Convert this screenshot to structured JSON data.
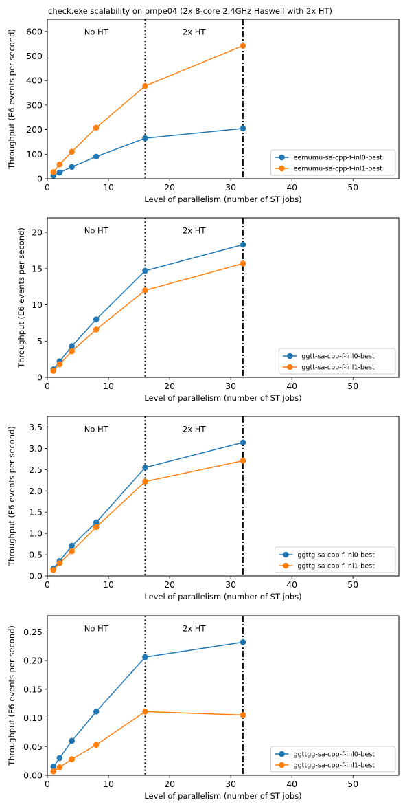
{
  "figure_title": "check.exe scalability on pmpe04 (2x 8-core 2.4GHz Haswell with 2x HT)",
  "colors": {
    "series0": "#1f77b4",
    "series1": "#ff7f0e",
    "axis": "#000000"
  },
  "chart_data": [
    {
      "type": "line",
      "xlabel": "Level of parallelism (number of ST jobs)",
      "ylabel": "Throughput (E6 events per second)",
      "xlim": [
        0,
        57.5
      ],
      "ylim": [
        0,
        650
      ],
      "xticks": [
        "0",
        "10",
        "20",
        "30",
        "40",
        "50"
      ],
      "xtick_values": [
        0,
        10,
        20,
        30,
        40,
        50
      ],
      "yticks": [
        "0",
        "100",
        "200",
        "300",
        "400",
        "500",
        "600"
      ],
      "ytick_values": [
        0,
        100,
        200,
        300,
        400,
        500,
        600
      ],
      "vlines": [
        {
          "x": 16,
          "style": "dotted"
        },
        {
          "x": 32,
          "style": "dashdot"
        }
      ],
      "annotations": [
        {
          "text": "No HT",
          "x": 8,
          "y_frac": 0.92
        },
        {
          "text": "2x HT",
          "x": 24,
          "y_frac": 0.92
        }
      ],
      "legend_position": "lower-right",
      "x": [
        1,
        2,
        4,
        8,
        16,
        32
      ],
      "series": [
        {
          "name": "eemumu-sa-cpp-f-inl0-best",
          "values": [
            13,
            25,
            48,
            90,
            165,
            205
          ]
        },
        {
          "name": "eemumu-sa-cpp-f-inl1-best",
          "values": [
            27,
            58,
            110,
            208,
            378,
            542
          ]
        }
      ]
    },
    {
      "type": "line",
      "xlabel": "Level of parallelism (number of ST jobs)",
      "ylabel": "Throughput (E6 events per second)",
      "xlim": [
        0,
        57.5
      ],
      "ylim": [
        0,
        22
      ],
      "xticks": [
        "0",
        "10",
        "20",
        "30",
        "40",
        "50"
      ],
      "xtick_values": [
        0,
        10,
        20,
        30,
        40,
        50
      ],
      "yticks": [
        "0",
        "5",
        "10",
        "15",
        "20"
      ],
      "ytick_values": [
        0,
        5,
        10,
        15,
        20
      ],
      "vlines": [
        {
          "x": 16,
          "style": "dotted"
        },
        {
          "x": 32,
          "style": "dashdot"
        }
      ],
      "annotations": [
        {
          "text": "No HT",
          "x": 8,
          "y_frac": 0.92
        },
        {
          "text": "2x HT",
          "x": 24,
          "y_frac": 0.92
        }
      ],
      "legend_position": "lower-right",
      "x": [
        1,
        2,
        4,
        8,
        16,
        32
      ],
      "series": [
        {
          "name": "ggtt-sa-cpp-f-inl0-best",
          "values": [
            1.1,
            2.2,
            4.3,
            8.0,
            14.7,
            18.3
          ]
        },
        {
          "name": "ggtt-sa-cpp-f-inl1-best",
          "values": [
            0.9,
            1.8,
            3.6,
            6.6,
            12.0,
            15.7
          ]
        }
      ]
    },
    {
      "type": "line",
      "xlabel": "Level of parallelism (number of ST jobs)",
      "ylabel": "Throughput (E6 events per second)",
      "xlim": [
        0,
        57.5
      ],
      "ylim": [
        0,
        3.75
      ],
      "xticks": [
        "0",
        "10",
        "20",
        "30",
        "40",
        "50"
      ],
      "xtick_values": [
        0,
        10,
        20,
        30,
        40,
        50
      ],
      "yticks": [
        "0.0",
        "0.5",
        "1.0",
        "1.5",
        "2.0",
        "2.5",
        "3.0",
        "3.5"
      ],
      "ytick_values": [
        0,
        0.5,
        1.0,
        1.5,
        2.0,
        2.5,
        3.0,
        3.5
      ],
      "vlines": [
        {
          "x": 16,
          "style": "dotted"
        },
        {
          "x": 32,
          "style": "dashdot"
        }
      ],
      "annotations": [
        {
          "text": "No HT",
          "x": 8,
          "y_frac": 0.92
        },
        {
          "text": "2x HT",
          "x": 24,
          "y_frac": 0.92
        }
      ],
      "legend_position": "lower-right",
      "x": [
        1,
        2,
        4,
        8,
        16,
        32
      ],
      "series": [
        {
          "name": "ggttg-sa-cpp-f-inl0-best",
          "values": [
            0.17,
            0.35,
            0.71,
            1.26,
            2.55,
            3.14
          ]
        },
        {
          "name": "ggttg-sa-cpp-f-inl1-best",
          "values": [
            0.14,
            0.3,
            0.58,
            1.15,
            2.22,
            2.71
          ]
        }
      ]
    },
    {
      "type": "line",
      "xlabel": "Level of parallelism (number of ST jobs)",
      "ylabel": "Throughput (E6 events per second)",
      "xlim": [
        0,
        57.5
      ],
      "ylim": [
        0,
        0.278
      ],
      "xticks": [
        "0",
        "10",
        "20",
        "30",
        "40",
        "50"
      ],
      "xtick_values": [
        0,
        10,
        20,
        30,
        40,
        50
      ],
      "yticks": [
        "0.00",
        "0.05",
        "0.10",
        "0.15",
        "0.20",
        "0.25"
      ],
      "ytick_values": [
        0,
        0.05,
        0.1,
        0.15,
        0.2,
        0.25
      ],
      "vlines": [
        {
          "x": 16,
          "style": "dotted"
        },
        {
          "x": 32,
          "style": "dashdot"
        }
      ],
      "annotations": [
        {
          "text": "No HT",
          "x": 8,
          "y_frac": 0.92
        },
        {
          "text": "2x HT",
          "x": 24,
          "y_frac": 0.92
        }
      ],
      "legend_position": "lower-right",
      "x": [
        1,
        2,
        4,
        8,
        16,
        32
      ],
      "series": [
        {
          "name": "ggttgg-sa-cpp-f-inl0-best",
          "values": [
            0.015,
            0.03,
            0.06,
            0.111,
            0.206,
            0.232
          ]
        },
        {
          "name": "ggttgg-sa-cpp-f-inl1-best",
          "values": [
            0.007,
            0.014,
            0.028,
            0.053,
            0.111,
            0.105
          ]
        }
      ]
    }
  ]
}
